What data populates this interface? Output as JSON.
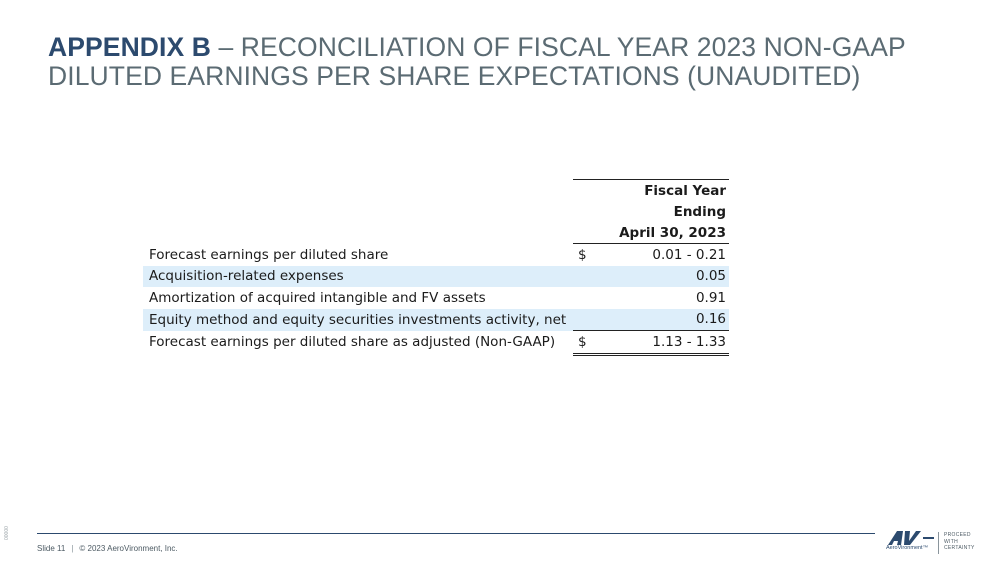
{
  "title": {
    "bold_part": "APPENDIX B",
    "rest_part": " – RECONCILIATION OF FISCAL YEAR 2023 NON-GAAP DILUTED EARNINGS PER SHARE EXPECTATIONS (UNAUDITED)"
  },
  "table": {
    "header_lines": [
      "Fiscal Year",
      "Ending",
      "April 30, 2023"
    ],
    "rows": [
      {
        "label": "Forecast earnings per diluted share",
        "dollar": "$",
        "value": "0.01 - 0.21"
      },
      {
        "label": "Acquisition-related expenses",
        "dollar": "",
        "value": "0.05"
      },
      {
        "label": "Amortization of acquired intangible and FV assets",
        "dollar": "",
        "value": "0.91"
      },
      {
        "label": "Equity method and equity securities investments activity, net",
        "dollar": "",
        "value": "0.16"
      },
      {
        "label": "Forecast earnings per diluted share as adjusted (Non-GAAP)",
        "dollar": "$",
        "value": "1.13 - 1.33"
      }
    ]
  },
  "footer": {
    "slide_label": "Slide 11",
    "separator": "|",
    "copyright": "© 2023 AeroVironment, Inc.",
    "side_code": "00000"
  },
  "logo": {
    "mark": "AV",
    "wordmark": "AeroVironment™",
    "tagline": [
      "PROCEED",
      "WITH",
      "CERTAINTY"
    ]
  },
  "colors": {
    "title_bold": "#2c4a6e",
    "title_text": "#5b6b73",
    "row_highlight": "#ddeefa",
    "brand": "#2c4a6e"
  }
}
